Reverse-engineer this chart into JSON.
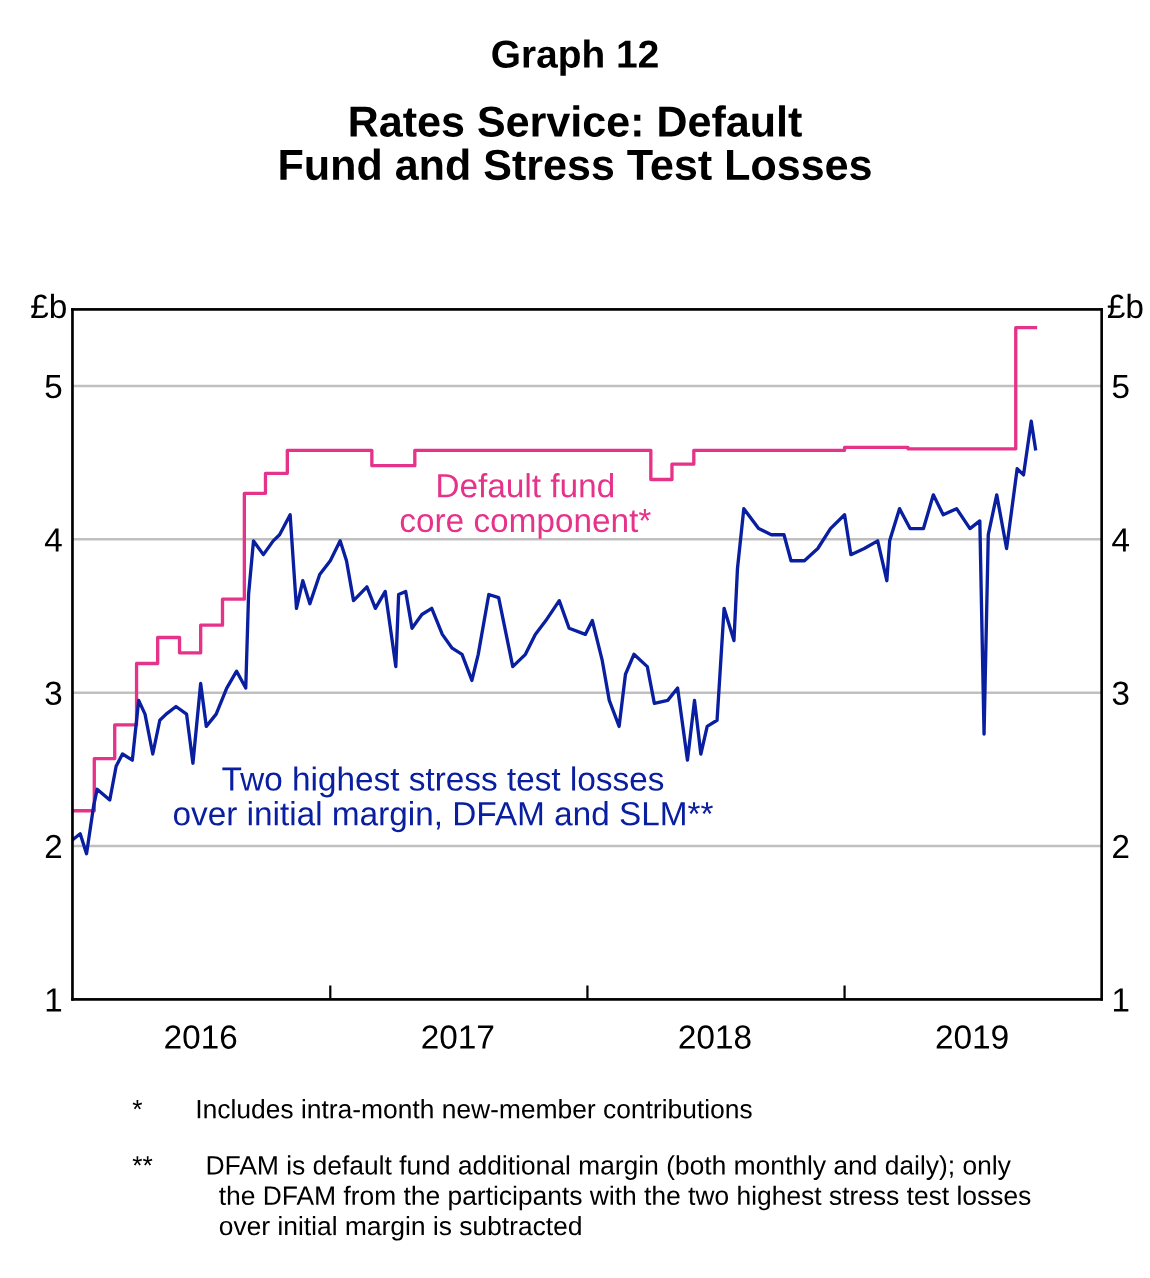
{
  "chart_data": {
    "type": "line",
    "title": "Graph 12",
    "subtitle": "Rates Service: Default\nFund and Stress Test Losses",
    "ylabel": "£b",
    "y2label": "£b",
    "xlim": [
      "2016-01-01",
      "2020-01-01"
    ],
    "xticks": [
      {
        "value": "2016-07-01",
        "label": "2016"
      },
      {
        "value": "2017-01-01",
        "label": null
      },
      {
        "value": "2017-07-01",
        "label": "2017"
      },
      {
        "value": "2018-01-01",
        "label": null
      },
      {
        "value": "2018-07-01",
        "label": "2018"
      },
      {
        "value": "2019-01-01",
        "label": null
      },
      {
        "value": "2019-07-01",
        "label": "2019"
      }
    ],
    "ylim": [
      1,
      5.5
    ],
    "yticks": [
      1,
      2,
      3,
      4,
      5
    ],
    "y2lim": [
      1,
      5.5
    ],
    "y2ticks": [
      1,
      2,
      3,
      4,
      5
    ],
    "grid": "y",
    "legend": false,
    "series": [
      {
        "name": "Default fund\ncore component*",
        "color": "#e6338a",
        "type": "step",
        "x": [
          "2016-01-01",
          "2016-02-01",
          "2016-03-01",
          "2016-04-01",
          "2016-05-01",
          "2016-06-01",
          "2016-07-01",
          "2016-08-01",
          "2016-09-01",
          "2016-10-01",
          "2016-11-01",
          "2017-03-01",
          "2017-05-01",
          "2018-04-01",
          "2018-05-01",
          "2018-06-01",
          "2019-01-01",
          "2019-04-01",
          "2019-09-01",
          "2019-09-29"
        ],
        "values": [
          2.23,
          2.57,
          2.79,
          3.19,
          3.36,
          3.26,
          3.44,
          3.61,
          4.3,
          4.43,
          4.58,
          4.48,
          4.58,
          4.39,
          4.49,
          4.58,
          4.6,
          4.59,
          5.38,
          5.38
        ]
      },
      {
        "name": "Two highest stress test losses\nover initial margin, DFAM and SLM**",
        "color": "#0a1fa0",
        "x": [
          "2016-01-01",
          "2016-01-12",
          "2016-01-21",
          "2016-01-31",
          "2016-02-05",
          "2016-02-23",
          "2016-03-03",
          "2016-03-12",
          "2016-03-26",
          "2016-04-04",
          "2016-04-13",
          "2016-04-24",
          "2016-05-04",
          "2016-05-13",
          "2016-05-27",
          "2016-06-11",
          "2016-06-20",
          "2016-07-01",
          "2016-07-09",
          "2016-07-23",
          "2016-08-07",
          "2016-08-21",
          "2016-09-03",
          "2016-09-07",
          "2016-09-14",
          "2016-09-28",
          "2016-10-12",
          "2016-10-21",
          "2016-11-05",
          "2016-11-14",
          "2016-11-23",
          "2016-12-03",
          "2016-12-17",
          "2017-01-01",
          "2017-01-15",
          "2017-01-24",
          "2017-02-03",
          "2017-02-22",
          "2017-03-06",
          "2017-03-20",
          "2017-04-04",
          "2017-04-08",
          "2017-04-18",
          "2017-04-27",
          "2017-05-11",
          "2017-05-25",
          "2017-06-09",
          "2017-06-23",
          "2017-07-07",
          "2017-07-21",
          "2017-07-30",
          "2017-08-14",
          "2017-08-28",
          "2017-09-17",
          "2017-10-05",
          "2017-10-19",
          "2017-11-03",
          "2017-11-22",
          "2017-12-06",
          "2017-12-29",
          "2018-01-08",
          "2018-01-22",
          "2018-02-01",
          "2018-02-15",
          "2018-02-24",
          "2018-03-08",
          "2018-03-27",
          "2018-04-06",
          "2018-04-25",
          "2018-05-09",
          "2018-05-23",
          "2018-06-02",
          "2018-06-11",
          "2018-06-20",
          "2018-07-04",
          "2018-07-14",
          "2018-07-28",
          "2018-08-02",
          "2018-08-11",
          "2018-09-01",
          "2018-09-19",
          "2018-10-07",
          "2018-10-17",
          "2018-11-05",
          "2018-11-24",
          "2018-12-12",
          "2019-01-01",
          "2019-01-10",
          "2019-01-29",
          "2019-02-17",
          "2019-03-02",
          "2019-03-06",
          "2019-03-20",
          "2019-04-04",
          "2019-04-23",
          "2019-05-07",
          "2019-05-21",
          "2019-06-09",
          "2019-06-28",
          "2019-07-12",
          "2019-07-18",
          "2019-07-24",
          "2019-08-05",
          "2019-08-19",
          "2019-09-03",
          "2019-09-12",
          "2019-09-23",
          "2019-09-29"
        ],
        "values": [
          2.04,
          2.08,
          1.95,
          2.26,
          2.37,
          2.3,
          2.52,
          2.6,
          2.56,
          2.95,
          2.86,
          2.6,
          2.82,
          2.86,
          2.91,
          2.86,
          2.54,
          3.06,
          2.78,
          2.86,
          3.03,
          3.14,
          3.03,
          3.64,
          3.99,
          3.9,
          3.99,
          4.03,
          4.16,
          3.55,
          3.73,
          3.58,
          3.77,
          3.86,
          3.99,
          3.86,
          3.6,
          3.69,
          3.55,
          3.66,
          3.17,
          3.64,
          3.66,
          3.42,
          3.51,
          3.55,
          3.38,
          3.29,
          3.25,
          3.08,
          3.25,
          3.64,
          3.62,
          3.17,
          3.25,
          3.38,
          3.47,
          3.6,
          3.42,
          3.38,
          3.47,
          3.21,
          2.95,
          2.78,
          3.12,
          3.25,
          3.17,
          2.93,
          2.95,
          3.03,
          2.56,
          2.95,
          2.6,
          2.78,
          2.82,
          3.55,
          3.34,
          3.81,
          4.2,
          4.07,
          4.03,
          4.03,
          3.86,
          3.86,
          3.94,
          4.07,
          4.16,
          3.9,
          3.94,
          3.99,
          3.73,
          3.99,
          4.2,
          4.07,
          4.07,
          4.29,
          4.16,
          4.2,
          4.07,
          4.12,
          2.73,
          4.03,
          4.29,
          3.94,
          4.46,
          4.42,
          4.77,
          4.59
        ]
      }
    ],
    "annotations": [
      "*  Includes intra-month new-member contributions",
      "**  DFAM is default fund additional margin (both monthly and daily); only\n    the DFAM from the participants with the two highest stress test losses\n    over initial margin is subtracted"
    ]
  }
}
